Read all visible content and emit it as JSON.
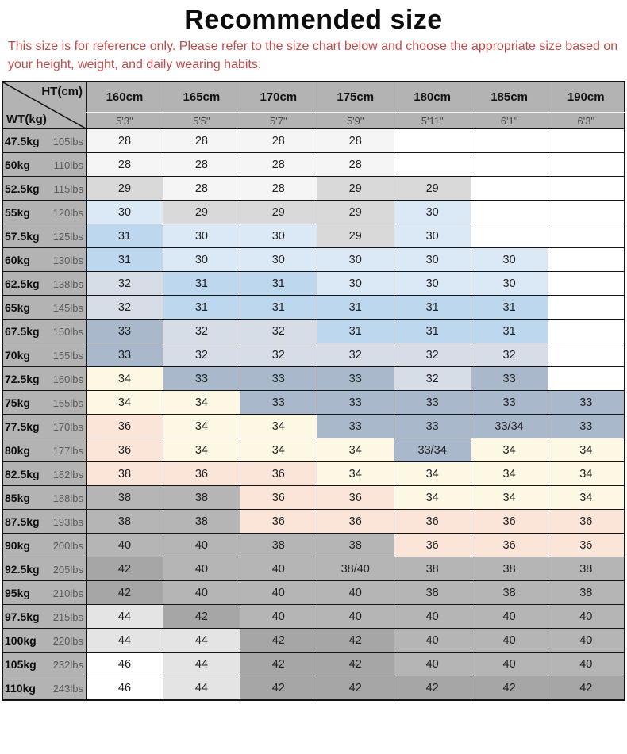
{
  "title": "Recommended size",
  "disclaimer": "This size is for reference only. Please refer to the size chart below and choose the appropriate size based on your height, weight, and daily wearing habits.",
  "colors": {
    "disclaimer_text": "#c34a4a",
    "header_bg": "#b3b3b3",
    "border": "#141414",
    "palette": {
      "s28": "#f5f5f5",
      "g29": "#d9d9d9",
      "b30": "#dbe9f6",
      "b31": "#bdd7ee",
      "b32": "#d6dde7",
      "b33": "#a9b8ca",
      "c34": "#fdf8e3",
      "p36": "#fbe5d9",
      "g38": "#b5b5b5",
      "g42": "#a6a6a6",
      "g44": "#e4e4e4",
      "wh": "#ffffff"
    }
  },
  "chart_data": {
    "type": "table",
    "title": "Recommended size",
    "corner": {
      "top_label": "HT(cm)",
      "bottom_label": "WT(kg)"
    },
    "height_columns": [
      {
        "cm": "160cm",
        "ft": "5'3\""
      },
      {
        "cm": "165cm",
        "ft": "5'5\""
      },
      {
        "cm": "170cm",
        "ft": "5'7\""
      },
      {
        "cm": "175cm",
        "ft": "5'9\""
      },
      {
        "cm": "180cm",
        "ft": "5'11\""
      },
      {
        "cm": "185cm",
        "ft": "6'1\""
      },
      {
        "cm": "190cm",
        "ft": "6'3\""
      }
    ],
    "weight_rows": [
      {
        "kg": "47.5kg",
        "lbs": "105lbs",
        "cells": [
          [
            "28",
            "s28"
          ],
          [
            "28",
            "s28"
          ],
          [
            "28",
            "s28"
          ],
          [
            "28",
            "s28"
          ],
          [
            "",
            "wh"
          ],
          [
            "",
            "wh"
          ],
          [
            "",
            "wh"
          ]
        ]
      },
      {
        "kg": "50kg",
        "lbs": "110lbs",
        "cells": [
          [
            "28",
            "s28"
          ],
          [
            "28",
            "s28"
          ],
          [
            "28",
            "s28"
          ],
          [
            "28",
            "s28"
          ],
          [
            "",
            "wh"
          ],
          [
            "",
            "wh"
          ],
          [
            "",
            "wh"
          ]
        ]
      },
      {
        "kg": "52.5kg",
        "lbs": "115lbs",
        "cells": [
          [
            "29",
            "g29"
          ],
          [
            "28",
            "s28"
          ],
          [
            "28",
            "s28"
          ],
          [
            "29",
            "g29"
          ],
          [
            "29",
            "g29"
          ],
          [
            "",
            "wh"
          ],
          [
            "",
            "wh"
          ]
        ]
      },
      {
        "kg": "55kg",
        "lbs": "120lbs",
        "cells": [
          [
            "30",
            "b30"
          ],
          [
            "29",
            "g29"
          ],
          [
            "29",
            "g29"
          ],
          [
            "29",
            "g29"
          ],
          [
            "30",
            "b30"
          ],
          [
            "",
            "wh"
          ],
          [
            "",
            "wh"
          ]
        ]
      },
      {
        "kg": "57.5kg",
        "lbs": "125lbs",
        "cells": [
          [
            "31",
            "b31"
          ],
          [
            "30",
            "b30"
          ],
          [
            "30",
            "b30"
          ],
          [
            "29",
            "g29"
          ],
          [
            "30",
            "b30"
          ],
          [
            "",
            "wh"
          ],
          [
            "",
            "wh"
          ]
        ]
      },
      {
        "kg": "60kg",
        "lbs": "130lbs",
        "cells": [
          [
            "31",
            "b31"
          ],
          [
            "30",
            "b30"
          ],
          [
            "30",
            "b30"
          ],
          [
            "30",
            "b30"
          ],
          [
            "30",
            "b30"
          ],
          [
            "30",
            "b30"
          ],
          [
            "",
            "wh"
          ]
        ]
      },
      {
        "kg": "62.5kg",
        "lbs": "138lbs",
        "cells": [
          [
            "32",
            "b32"
          ],
          [
            "31",
            "b31"
          ],
          [
            "31",
            "b31"
          ],
          [
            "30",
            "b30"
          ],
          [
            "30",
            "b30"
          ],
          [
            "30",
            "b30"
          ],
          [
            "",
            "wh"
          ]
        ]
      },
      {
        "kg": "65kg",
        "lbs": "145lbs",
        "cells": [
          [
            "32",
            "b32"
          ],
          [
            "31",
            "b31"
          ],
          [
            "31",
            "b31"
          ],
          [
            "31",
            "b31"
          ],
          [
            "31",
            "b31"
          ],
          [
            "31",
            "b31"
          ],
          [
            "",
            "wh"
          ]
        ]
      },
      {
        "kg": "67.5kg",
        "lbs": "150lbs",
        "cells": [
          [
            "33",
            "b33"
          ],
          [
            "32",
            "b32"
          ],
          [
            "32",
            "b32"
          ],
          [
            "31",
            "b31"
          ],
          [
            "31",
            "b31"
          ],
          [
            "31",
            "b31"
          ],
          [
            "",
            "wh"
          ]
        ]
      },
      {
        "kg": "70kg",
        "lbs": "155lbs",
        "cells": [
          [
            "33",
            "b33"
          ],
          [
            "32",
            "b32"
          ],
          [
            "32",
            "b32"
          ],
          [
            "32",
            "b32"
          ],
          [
            "32",
            "b32"
          ],
          [
            "32",
            "b32"
          ],
          [
            "",
            "wh"
          ]
        ]
      },
      {
        "kg": "72.5kg",
        "lbs": "160lbs",
        "cells": [
          [
            "34",
            "c34"
          ],
          [
            "33",
            "b33"
          ],
          [
            "33",
            "b33"
          ],
          [
            "33",
            "b33"
          ],
          [
            "32",
            "b32"
          ],
          [
            "33",
            "b33"
          ],
          [
            "",
            "wh"
          ]
        ]
      },
      {
        "kg": "75kg",
        "lbs": "165lbs",
        "cells": [
          [
            "34",
            "c34"
          ],
          [
            "34",
            "c34"
          ],
          [
            "33",
            "b33"
          ],
          [
            "33",
            "b33"
          ],
          [
            "33",
            "b33"
          ],
          [
            "33",
            "b33"
          ],
          [
            "33",
            "b33"
          ]
        ]
      },
      {
        "kg": "77.5kg",
        "lbs": "170lbs",
        "cells": [
          [
            "36",
            "p36"
          ],
          [
            "34",
            "c34"
          ],
          [
            "34",
            "c34"
          ],
          [
            "33",
            "b33"
          ],
          [
            "33",
            "b33"
          ],
          [
            "33/34",
            "b33"
          ],
          [
            "33",
            "b33"
          ]
        ]
      },
      {
        "kg": "80kg",
        "lbs": "177lbs",
        "cells": [
          [
            "36",
            "p36"
          ],
          [
            "34",
            "c34"
          ],
          [
            "34",
            "c34"
          ],
          [
            "34",
            "c34"
          ],
          [
            "33/34",
            "b33"
          ],
          [
            "34",
            "c34"
          ],
          [
            "34",
            "c34"
          ]
        ]
      },
      {
        "kg": "82.5kg",
        "lbs": "182lbs",
        "cells": [
          [
            "38",
            "p36"
          ],
          [
            "36",
            "p36"
          ],
          [
            "36",
            "p36"
          ],
          [
            "34",
            "c34"
          ],
          [
            "34",
            "c34"
          ],
          [
            "34",
            "c34"
          ],
          [
            "34",
            "c34"
          ]
        ]
      },
      {
        "kg": "85kg",
        "lbs": "188lbs",
        "cells": [
          [
            "38",
            "g38"
          ],
          [
            "38",
            "g38"
          ],
          [
            "36",
            "p36"
          ],
          [
            "36",
            "p36"
          ],
          [
            "34",
            "c34"
          ],
          [
            "34",
            "c34"
          ],
          [
            "34",
            "c34"
          ]
        ]
      },
      {
        "kg": "87.5kg",
        "lbs": "193lbs",
        "cells": [
          [
            "38",
            "g38"
          ],
          [
            "38",
            "g38"
          ],
          [
            "36",
            "p36"
          ],
          [
            "36",
            "p36"
          ],
          [
            "36",
            "p36"
          ],
          [
            "36",
            "p36"
          ],
          [
            "36",
            "p36"
          ]
        ]
      },
      {
        "kg": "90kg",
        "lbs": "200lbs",
        "cells": [
          [
            "40",
            "g38"
          ],
          [
            "40",
            "g38"
          ],
          [
            "38",
            "g38"
          ],
          [
            "38",
            "g38"
          ],
          [
            "36",
            "p36"
          ],
          [
            "36",
            "p36"
          ],
          [
            "36",
            "p36"
          ]
        ]
      },
      {
        "kg": "92.5kg",
        "lbs": "205lbs",
        "cells": [
          [
            "42",
            "g42"
          ],
          [
            "40",
            "g38"
          ],
          [
            "40",
            "g38"
          ],
          [
            "38/40",
            "g38"
          ],
          [
            "38",
            "g38"
          ],
          [
            "38",
            "g38"
          ],
          [
            "38",
            "g38"
          ]
        ]
      },
      {
        "kg": "95kg",
        "lbs": "210lbs",
        "cells": [
          [
            "42",
            "g42"
          ],
          [
            "40",
            "g38"
          ],
          [
            "40",
            "g38"
          ],
          [
            "40",
            "g38"
          ],
          [
            "38",
            "g38"
          ],
          [
            "38",
            "g38"
          ],
          [
            "38",
            "g38"
          ]
        ]
      },
      {
        "kg": "97.5kg",
        "lbs": "215lbs",
        "cells": [
          [
            "44",
            "g44"
          ],
          [
            "42",
            "g42"
          ],
          [
            "40",
            "g38"
          ],
          [
            "40",
            "g38"
          ],
          [
            "40",
            "g38"
          ],
          [
            "40",
            "g38"
          ],
          [
            "40",
            "g38"
          ]
        ]
      },
      {
        "kg": "100kg",
        "lbs": "220lbs",
        "cells": [
          [
            "44",
            "g44"
          ],
          [
            "44",
            "g44"
          ],
          [
            "42",
            "g42"
          ],
          [
            "42",
            "g42"
          ],
          [
            "40",
            "g38"
          ],
          [
            "40",
            "g38"
          ],
          [
            "40",
            "g38"
          ]
        ]
      },
      {
        "kg": "105kg",
        "lbs": "232lbs",
        "cells": [
          [
            "46",
            "wh"
          ],
          [
            "44",
            "g44"
          ],
          [
            "42",
            "g42"
          ],
          [
            "42",
            "g42"
          ],
          [
            "40",
            "g38"
          ],
          [
            "40",
            "g38"
          ],
          [
            "40",
            "g38"
          ]
        ]
      },
      {
        "kg": "110kg",
        "lbs": "243lbs",
        "cells": [
          [
            "46",
            "wh"
          ],
          [
            "44",
            "g44"
          ],
          [
            "42",
            "g42"
          ],
          [
            "42",
            "g42"
          ],
          [
            "42",
            "g42"
          ],
          [
            "42",
            "g42"
          ],
          [
            "42",
            "g42"
          ]
        ]
      }
    ]
  }
}
